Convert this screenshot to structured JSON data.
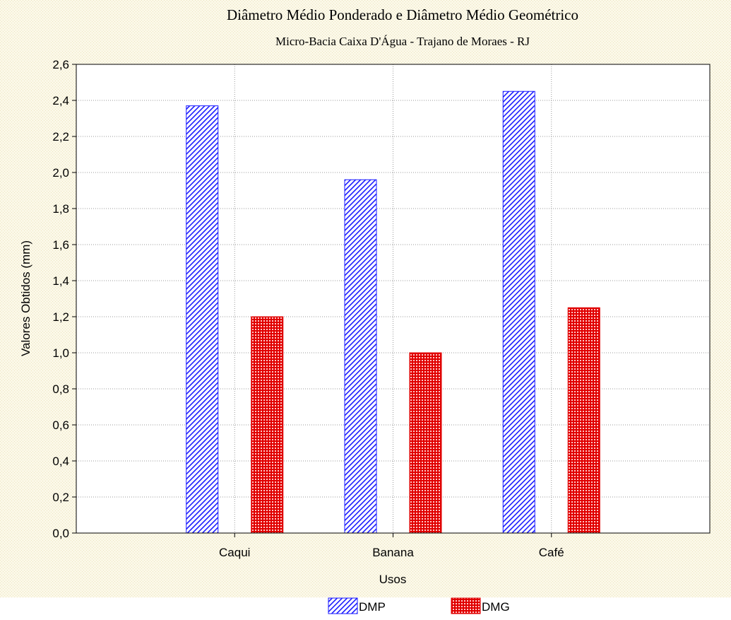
{
  "chart_data": {
    "type": "bar",
    "title": "Diâmetro Médio Ponderado e Diâmetro Médio Geométrico",
    "subtitle": "Micro-Bacia Caixa D'Água - Trajano de Moraes - RJ",
    "xlabel": "Usos",
    "ylabel": "Valores Obtidos (mm)",
    "categories": [
      "Caqui",
      "Banana",
      "Café"
    ],
    "series": [
      {
        "name": "DMP",
        "values": [
          2.37,
          1.96,
          2.45
        ],
        "color": "#1a1aff",
        "pattern": "diagonal-hatch"
      },
      {
        "name": "DMG",
        "values": [
          1.2,
          1.0,
          1.25
        ],
        "color": "#e00000",
        "pattern": "grid-dots"
      }
    ],
    "ylim": [
      0,
      2.6
    ],
    "yticks": [
      "0,0",
      "0,2",
      "0,4",
      "0,6",
      "0,8",
      "1,0",
      "1,2",
      "1,4",
      "1,6",
      "1,8",
      "2,0",
      "2,2",
      "2,4",
      "2,6"
    ],
    "grid": true,
    "legend_position": "bottom-center",
    "background": "#f7f3dc"
  }
}
